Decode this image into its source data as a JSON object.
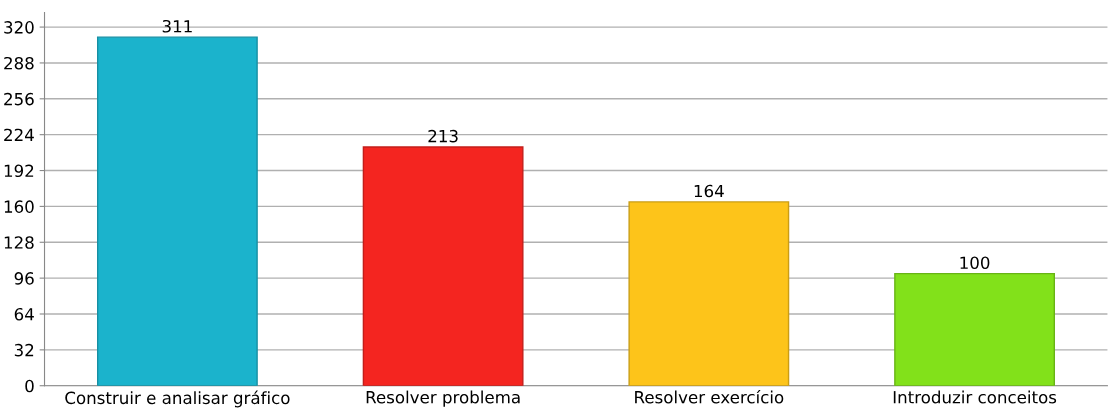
{
  "chart_data": {
    "type": "bar",
    "categories": [
      "Construir e analisar gráfico",
      "Resolver problema",
      "Resolver exercício",
      "Introduzir conceitos"
    ],
    "values": [
      311,
      213,
      164,
      100
    ],
    "colors": [
      "#1bb3cc",
      "#f42520",
      "#fdc41a",
      "#82e11a"
    ],
    "ylim": [
      0,
      333
    ],
    "yticks": [
      0,
      32,
      64,
      96,
      128,
      160,
      192,
      224,
      256,
      288,
      320
    ],
    "grid": "y",
    "data_labels": true
  }
}
